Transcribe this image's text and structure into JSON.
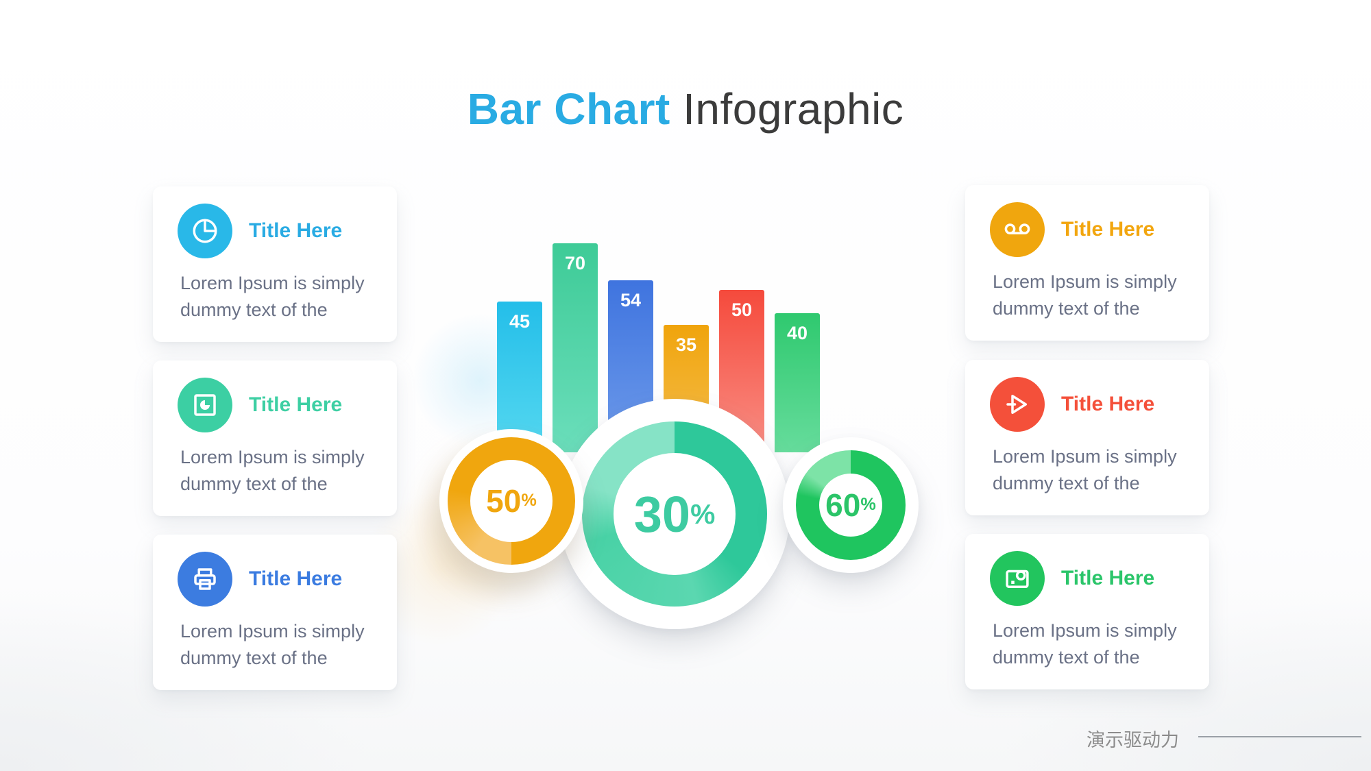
{
  "title": {
    "accent": "Bar Chart",
    "rest": " Infographic"
  },
  "colors": {
    "title_accent": "#29abe3",
    "title_rest": "#3b3b3b",
    "body_text": "#6a7186",
    "card_bg": "#ffffff"
  },
  "left_cards": [
    {
      "icon": "pie-chart-icon",
      "icon_color": "#29b8e8",
      "title": "Title Here",
      "title_color": "#29abe3",
      "body": "Lorem Ipsum is simply dummy text of the"
    },
    {
      "icon": "chart-board-icon",
      "icon_color": "#3ccfa3",
      "title": "Title Here",
      "title_color": "#3dcfa3",
      "body": "Lorem Ipsum is simply dummy text of the"
    },
    {
      "icon": "printer-icon",
      "icon_color": "#3c7ce0",
      "title": "Title Here",
      "title_color": "#3a7be0",
      "body": "Lorem Ipsum is simply dummy text of the"
    }
  ],
  "right_cards": [
    {
      "icon": "voicemail-icon",
      "icon_color": "#f0a60e",
      "title": "Title Here",
      "title_color": "#f2a60f",
      "body": "Lorem Ipsum is simply dummy text of the"
    },
    {
      "icon": "send-icon",
      "icon_color": "#f4503a",
      "title": "Title Here",
      "title_color": "#f4503a",
      "body": "Lorem Ipsum is simply dummy text of the"
    },
    {
      "icon": "camera-icon",
      "icon_color": "#22c55e",
      "title": "Title Here",
      "title_color": "#2bc56a",
      "body": "Lorem Ipsum is simply dummy text of the"
    }
  ],
  "chart_data": {
    "type": "bar",
    "title": "Bar Chart Infographic",
    "bars": {
      "values": [
        45,
        70,
        54,
        35,
        50,
        40
      ],
      "colors": [
        [
          "#24bee9",
          "#55d8f0"
        ],
        [
          "#3ecb97",
          "#6bdebb"
        ],
        [
          "#3f74df",
          "#6e9bea"
        ],
        [
          "#f0a40c",
          "#f5be4e"
        ],
        [
          "#f54a3c",
          "#f98e84"
        ],
        [
          "#2fc96f",
          "#66dc9c"
        ]
      ]
    },
    "donuts": [
      {
        "label": "50",
        "unit": "%",
        "value": 50,
        "color": "#f0a60e"
      },
      {
        "label": "30",
        "unit": "%",
        "value": 30,
        "color": "#3dcba1"
      },
      {
        "label": "60",
        "unit": "%",
        "value": 60,
        "color": "#2bc468"
      }
    ]
  },
  "footer": {
    "brand": "演示驱动力"
  }
}
